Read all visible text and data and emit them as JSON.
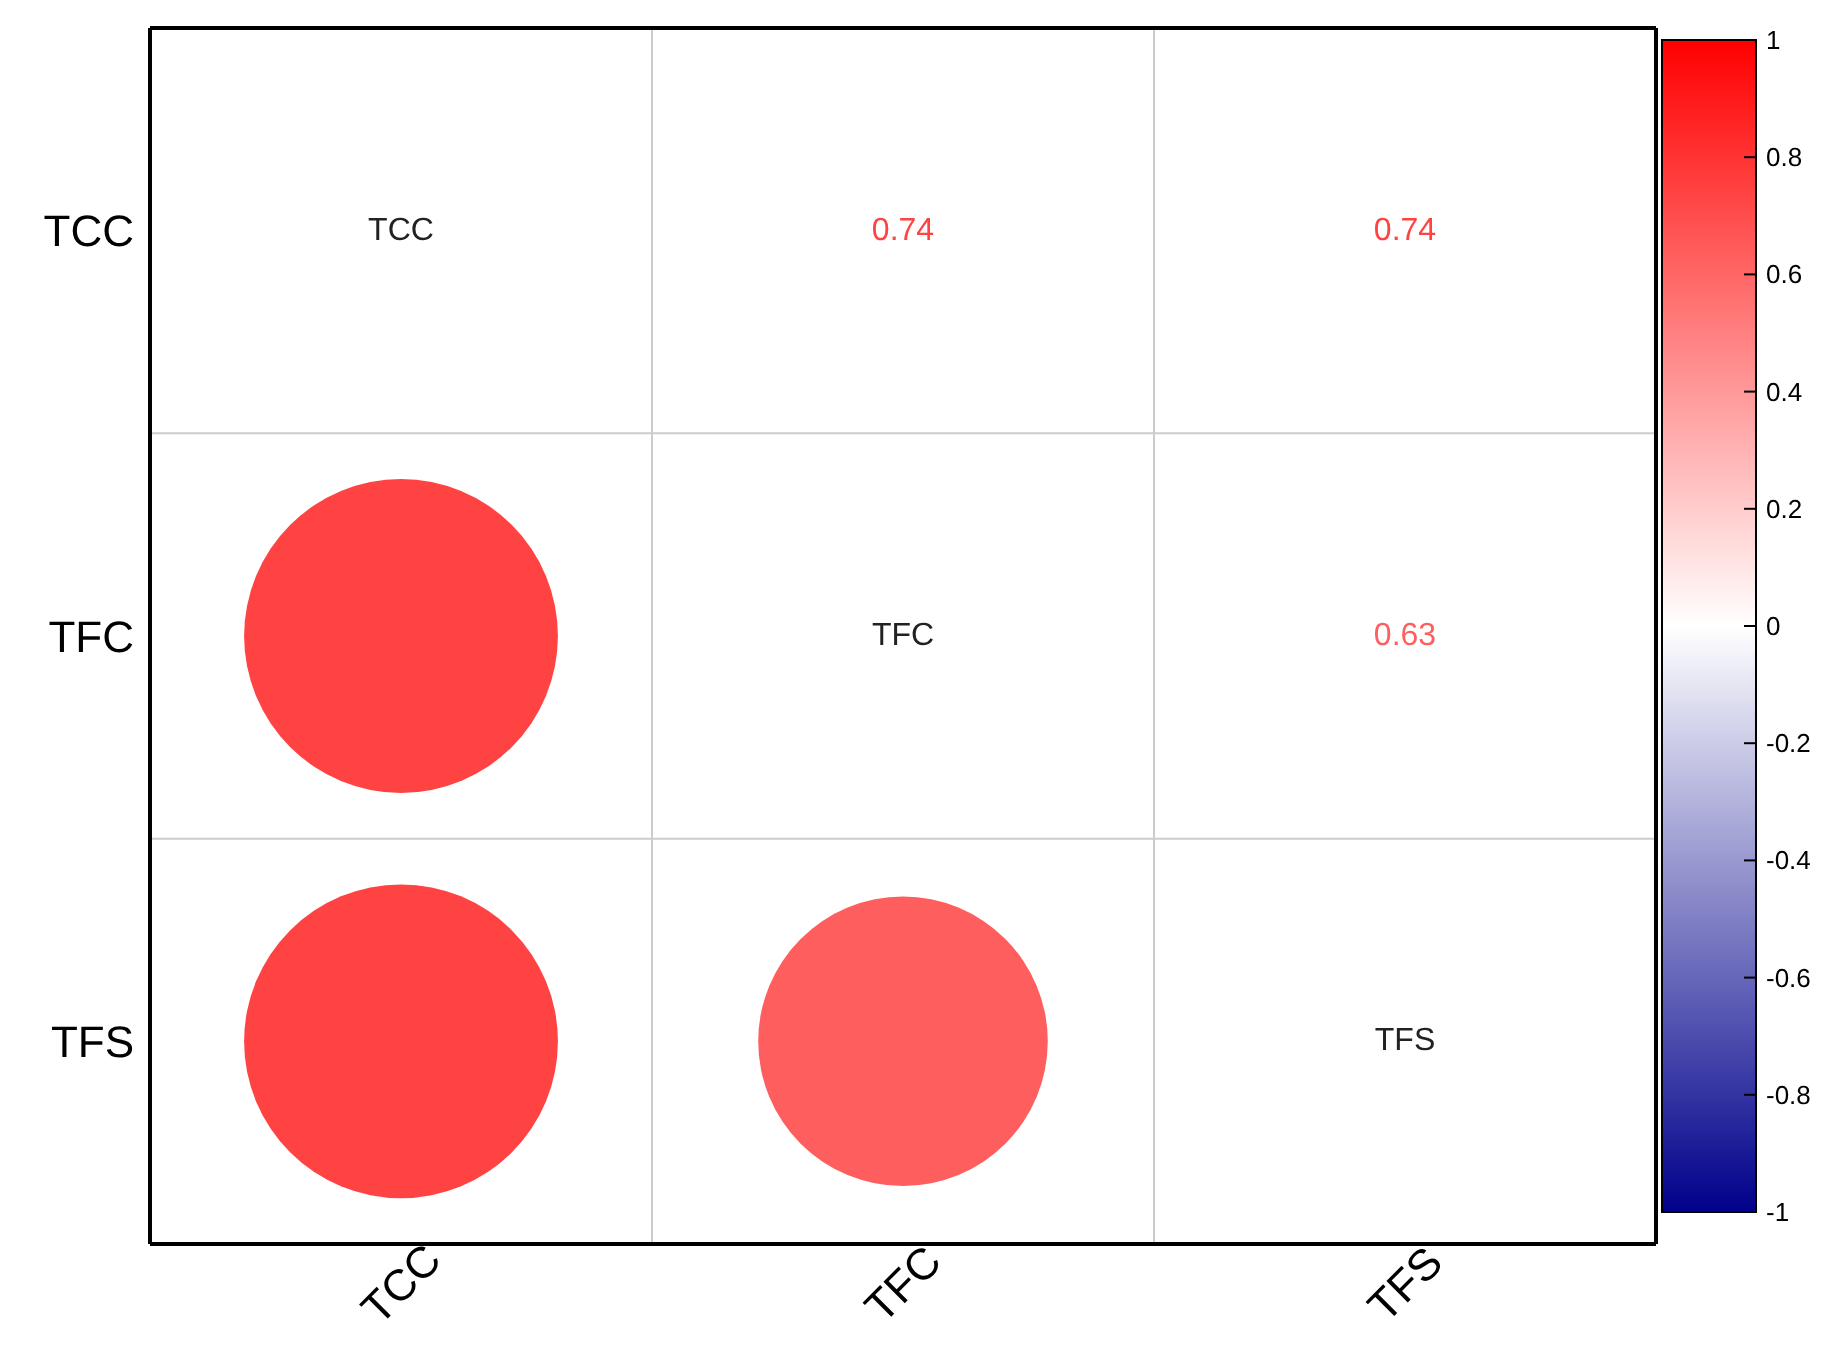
{
  "chart_data": {
    "type": "heatmap",
    "categories": [
      "TCC",
      "TFC",
      "TFS"
    ],
    "y_categories": [
      "TCC",
      "TFC",
      "TFS"
    ],
    "cells": [
      [
        null,
        null,
        null
      ],
      [
        0.74,
        null,
        null
      ],
      [
        0.74,
        0.63,
        null
      ]
    ],
    "cell_labels": [
      [
        "TCC",
        "0.74",
        "0.74"
      ],
      [
        null,
        "TFC",
        "0.63"
      ],
      [
        null,
        null,
        "TFS"
      ]
    ],
    "clim": [
      -1,
      1
    ],
    "cticks": [
      -1,
      -0.8,
      -0.6,
      -0.4,
      -0.2,
      0,
      0.2,
      0.4,
      0.6,
      0.8,
      1
    ],
    "grid": true
  }
}
